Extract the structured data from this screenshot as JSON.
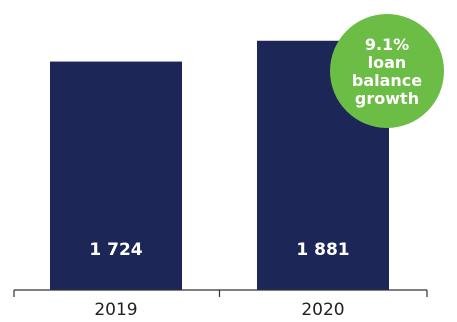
{
  "chart_data": {
    "type": "bar",
    "categories": [
      "2019",
      "2020"
    ],
    "values": [
      1724,
      1881
    ],
    "value_labels": [
      "1 724",
      "1 881"
    ],
    "ylim": [
      0,
      2000
    ],
    "grid": false,
    "annotation": {
      "lines": [
        "9.1%",
        "loan",
        "balance",
        "growth"
      ]
    }
  },
  "colors": {
    "bar": "#1c2657",
    "badge": "#6cbd45",
    "axis": "#333333"
  }
}
